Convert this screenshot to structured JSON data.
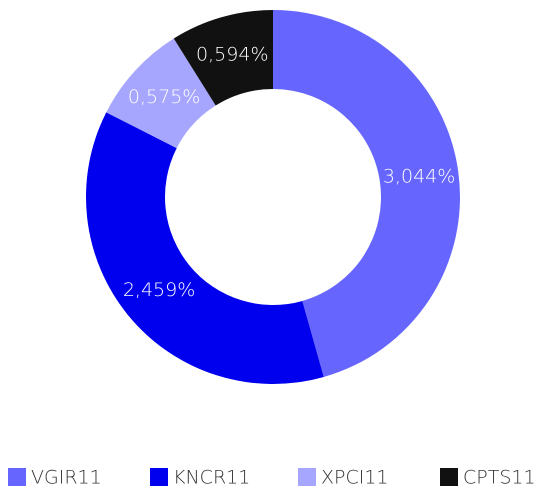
{
  "chart_data": {
    "type": "doughnut",
    "categories": [
      "VGIR11",
      "KNCR11",
      "XPCI11",
      "CPTS11"
    ],
    "values": [
      3.044,
      2.459,
      0.575,
      0.594
    ],
    "value_labels": [
      "3,044%",
      "2,459%",
      "0,575%",
      "0,594%"
    ],
    "colors": [
      "#6666ff",
      "#0000ee",
      "#a6a6ff",
      "#111111"
    ]
  }
}
